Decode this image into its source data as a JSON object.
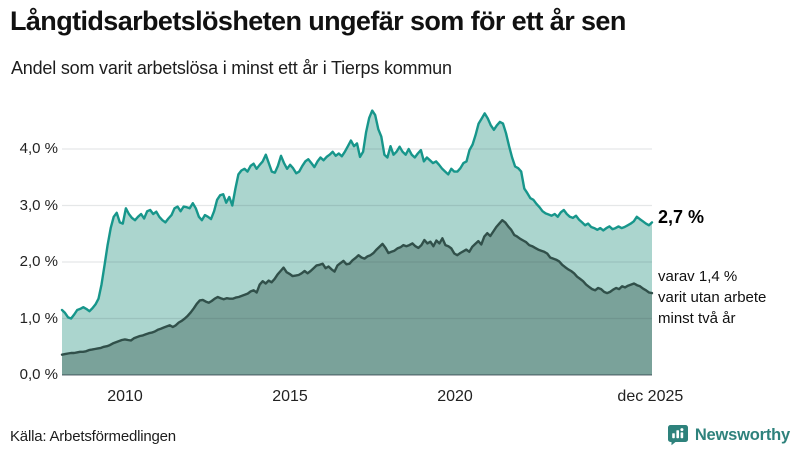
{
  "header": {
    "title": "Långtidsarbetslösheten ungefär som för ett år sen",
    "subtitle": "Andel som varit arbetslösa i minst ett år i Tierps kommun"
  },
  "chart_data": {
    "type": "area",
    "title": "Långtidsarbetslösheten ungefär som för ett år sen",
    "subtitle": "Andel som varit arbetslösa i minst ett år i Tierps kommun",
    "xlabel": "",
    "ylabel": "",
    "x_start": 2008.09,
    "x_end": 2025.97,
    "ylim": [
      0,
      4.7
    ],
    "grid": true,
    "legend": "none",
    "x_ticks": [
      {
        "label": "2010",
        "year": 2010
      },
      {
        "label": "2015",
        "year": 2015
      },
      {
        "label": "2020",
        "year": 2020
      },
      {
        "label": "dec 2025",
        "year": 2025.92
      }
    ],
    "y_ticks": [
      {
        "label": "0,0 %",
        "value": 0
      },
      {
        "label": "1,0 %",
        "value": 1
      },
      {
        "label": "2,0 %",
        "value": 2
      },
      {
        "label": "3,0 %",
        "value": 3
      },
      {
        "label": "4,0 %",
        "value": 4
      }
    ],
    "series": [
      {
        "name": "arbetslösa minst ett år",
        "end_value": 2.7,
        "line_color": "#17968b",
        "fill_color": "#abd5ce",
        "values": [
          1.15,
          1.1,
          1.02,
          1.0,
          1.07,
          1.15,
          1.17,
          1.2,
          1.17,
          1.13,
          1.18,
          1.25,
          1.35,
          1.6,
          1.95,
          2.3,
          2.6,
          2.8,
          2.87,
          2.7,
          2.68,
          2.95,
          2.85,
          2.78,
          2.74,
          2.8,
          2.85,
          2.77,
          2.9,
          2.92,
          2.85,
          2.89,
          2.8,
          2.74,
          2.7,
          2.77,
          2.83,
          2.95,
          2.98,
          2.9,
          2.98,
          2.97,
          2.95,
          3.04,
          2.95,
          2.8,
          2.74,
          2.83,
          2.8,
          2.76,
          2.9,
          3.1,
          3.18,
          3.2,
          3.05,
          3.15,
          3.0,
          3.3,
          3.55,
          3.62,
          3.65,
          3.6,
          3.7,
          3.74,
          3.65,
          3.72,
          3.78,
          3.9,
          3.75,
          3.6,
          3.58,
          3.7,
          3.88,
          3.75,
          3.65,
          3.72,
          3.66,
          3.57,
          3.6,
          3.7,
          3.78,
          3.82,
          3.75,
          3.68,
          3.78,
          3.85,
          3.8,
          3.86,
          3.9,
          3.95,
          3.88,
          3.92,
          3.87,
          3.95,
          4.05,
          4.15,
          4.05,
          4.1,
          3.86,
          3.95,
          4.3,
          4.55,
          4.68,
          4.6,
          4.35,
          4.22,
          3.9,
          3.85,
          4.05,
          3.9,
          3.95,
          4.04,
          3.95,
          3.9,
          4.0,
          3.9,
          3.85,
          3.92,
          3.98,
          3.78,
          3.85,
          3.8,
          3.75,
          3.78,
          3.72,
          3.65,
          3.6,
          3.55,
          3.65,
          3.6,
          3.6,
          3.66,
          3.75,
          3.78,
          3.98,
          4.08,
          4.25,
          4.45,
          4.54,
          4.63,
          4.54,
          4.42,
          4.34,
          4.42,
          4.48,
          4.45,
          4.28,
          4.05,
          3.85,
          3.69,
          3.66,
          3.6,
          3.3,
          3.22,
          3.13,
          3.1,
          3.03,
          2.97,
          2.9,
          2.86,
          2.84,
          2.82,
          2.85,
          2.8,
          2.88,
          2.92,
          2.85,
          2.8,
          2.78,
          2.82,
          2.75,
          2.7,
          2.65,
          2.68,
          2.62,
          2.6,
          2.57,
          2.6,
          2.56,
          2.6,
          2.63,
          2.58,
          2.6,
          2.63,
          2.6,
          2.62,
          2.65,
          2.68,
          2.72,
          2.8,
          2.76,
          2.72,
          2.68,
          2.65,
          2.7
        ]
      },
      {
        "name": "varit utan arbete minst två år",
        "end_value": 1.4,
        "line_color": "#31504a",
        "fill_color": "#7aa29a",
        "values": [
          0.36,
          0.37,
          0.38,
          0.39,
          0.39,
          0.4,
          0.41,
          0.41,
          0.42,
          0.44,
          0.45,
          0.46,
          0.47,
          0.48,
          0.5,
          0.51,
          0.53,
          0.56,
          0.58,
          0.6,
          0.62,
          0.63,
          0.62,
          0.61,
          0.65,
          0.67,
          0.69,
          0.7,
          0.72,
          0.74,
          0.75,
          0.77,
          0.8,
          0.82,
          0.84,
          0.86,
          0.88,
          0.85,
          0.88,
          0.93,
          0.96,
          1.0,
          1.05,
          1.11,
          1.18,
          1.26,
          1.32,
          1.33,
          1.3,
          1.28,
          1.31,
          1.35,
          1.38,
          1.36,
          1.34,
          1.36,
          1.35,
          1.35,
          1.37,
          1.38,
          1.4,
          1.42,
          1.44,
          1.48,
          1.5,
          1.46,
          1.6,
          1.66,
          1.62,
          1.67,
          1.64,
          1.7,
          1.78,
          1.84,
          1.9,
          1.82,
          1.79,
          1.75,
          1.76,
          1.77,
          1.8,
          1.84,
          1.8,
          1.84,
          1.89,
          1.94,
          1.95,
          1.97,
          1.89,
          1.92,
          1.87,
          1.83,
          1.94,
          1.98,
          2.02,
          1.96,
          1.97,
          2.03,
          2.07,
          2.12,
          2.08,
          2.06,
          2.1,
          2.12,
          2.16,
          2.22,
          2.27,
          2.32,
          2.25,
          2.16,
          2.18,
          2.2,
          2.24,
          2.26,
          2.3,
          2.28,
          2.3,
          2.33,
          2.28,
          2.25,
          2.3,
          2.39,
          2.33,
          2.36,
          2.28,
          2.38,
          2.33,
          2.42,
          2.3,
          2.28,
          2.24,
          2.15,
          2.12,
          2.16,
          2.19,
          2.22,
          2.18,
          2.27,
          2.32,
          2.37,
          2.31,
          2.45,
          2.51,
          2.46,
          2.54,
          2.62,
          2.68,
          2.74,
          2.7,
          2.63,
          2.57,
          2.48,
          2.45,
          2.41,
          2.38,
          2.35,
          2.3,
          2.28,
          2.25,
          2.22,
          2.2,
          2.18,
          2.15,
          2.08,
          2.06,
          2.04,
          2.01,
          1.95,
          1.91,
          1.87,
          1.84,
          1.8,
          1.74,
          1.7,
          1.66,
          1.6,
          1.56,
          1.52,
          1.5,
          1.54,
          1.52,
          1.47,
          1.45,
          1.47,
          1.51,
          1.54,
          1.52,
          1.57,
          1.55,
          1.58,
          1.6,
          1.62,
          1.59,
          1.57,
          1.53,
          1.5,
          1.46,
          1.45
        ]
      }
    ],
    "annotations": {
      "end_value_label": "2,7 %",
      "sub_label_lines": [
        "varav 1,4 %",
        "varit utan arbete",
        "minst två år"
      ]
    }
  },
  "footer": {
    "source": "Källa: Arbetsförmedlingen",
    "brand": "Newsworthy",
    "brand_color": "#2e827c"
  }
}
